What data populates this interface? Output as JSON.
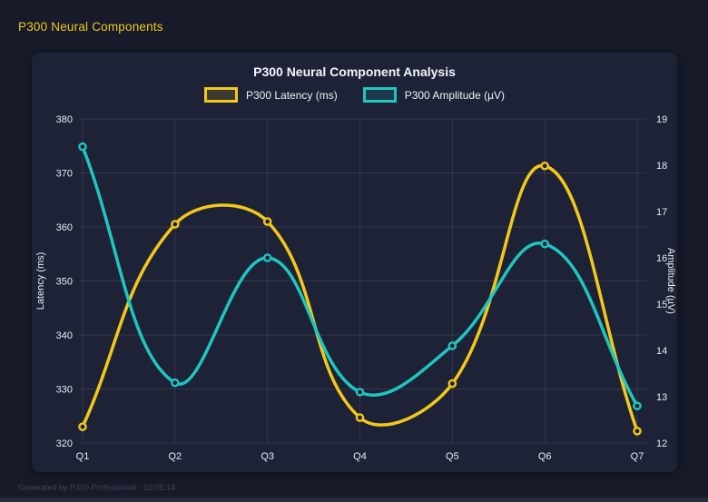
{
  "page": {
    "header": "P300 Neural Components",
    "footer": "Generated by P300 Professional - 10:05:14"
  },
  "colors": {
    "background": "#161a29",
    "panel": "#1e2236",
    "header_text": "#f0c81b",
    "title_text": "#f4f5f9",
    "tick_text": "#e9ecf4",
    "grid": "rgba(165,175,205,0.15)",
    "latency_series": "#f2c81a",
    "amplitude_series": "#1fc5bf",
    "footer_text": "#3d4459"
  },
  "chart_data": {
    "type": "line",
    "title": "P300 Neural Component Analysis",
    "categories": [
      "Q1",
      "Q2",
      "Q3",
      "Q4",
      "Q5",
      "Q6",
      "Q7"
    ],
    "series": [
      {
        "name": "P300 Latency (ms)",
        "axis": "left",
        "color": "#f2c81a",
        "values": [
          323.0,
          360.5,
          361.0,
          324.7,
          331.0,
          371.3,
          322.2
        ]
      },
      {
        "name": "P300 Amplitude (µV)",
        "axis": "right",
        "color": "#1fc5bf",
        "values": [
          18.4,
          13.3,
          16.0,
          13.1,
          14.1,
          16.3,
          12.8
        ]
      }
    ],
    "left_axis": {
      "label": "Latency (ms)",
      "min": 320,
      "max": 380,
      "ticks": [
        380,
        370,
        360,
        350,
        340,
        330,
        320
      ]
    },
    "right_axis": {
      "label": "Amplitude (µV)",
      "min": 12,
      "max": 19,
      "ticks": [
        19,
        18,
        17,
        16,
        15,
        14,
        13,
        12
      ]
    },
    "grid": true,
    "legend_position": "top",
    "line_tension": 0.4
  }
}
